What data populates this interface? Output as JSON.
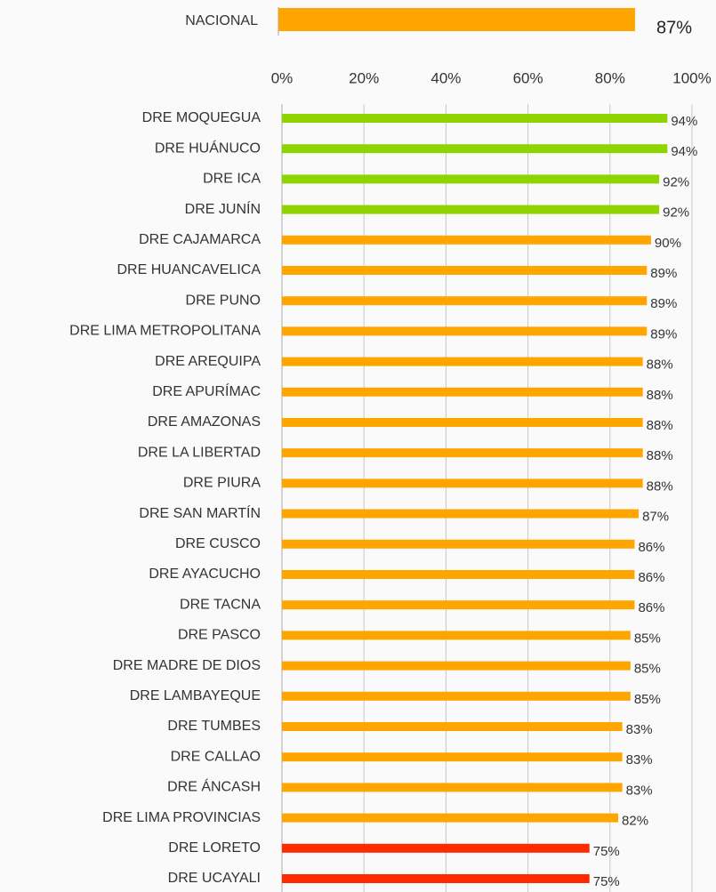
{
  "chart_data": [
    {
      "type": "bar",
      "categories": [
        "NACIONAL"
      ],
      "values": [
        87
      ],
      "value_labels": [
        "87%"
      ],
      "color": "#ffa500"
    },
    {
      "type": "bar",
      "categories": [
        "DRE MOQUEGUA",
        "DRE HUÁNUCO",
        "DRE ICA",
        "DRE JUNÍN",
        "DRE CAJAMARCA",
        "DRE HUANCAVELICA",
        "DRE PUNO",
        "DRE LIMA METROPOLITANA",
        "DRE AREQUIPA",
        "DRE APURÍMAC",
        "DRE AMAZONAS",
        "DRE LA LIBERTAD",
        "DRE PIURA",
        "DRE SAN MARTÍN",
        "DRE CUSCO",
        "DRE AYACUCHO",
        "DRE TACNA",
        "DRE PASCO",
        "DRE MADRE DE DIOS",
        "DRE LAMBAYEQUE",
        "DRE TUMBES",
        "DRE CALLAO",
        "DRE ÁNCASH",
        "DRE LIMA PROVINCIAS",
        "DRE LORETO",
        "DRE UCAYALI"
      ],
      "values": [
        94,
        94,
        92,
        92,
        90,
        89,
        89,
        89,
        88,
        88,
        88,
        88,
        88,
        87,
        86,
        86,
        86,
        85,
        85,
        85,
        83,
        83,
        83,
        82,
        75,
        75
      ],
      "value_labels": [
        "94%",
        "94%",
        "92%",
        "92%",
        "90%",
        "89%",
        "89%",
        "89%",
        "88%",
        "88%",
        "88%",
        "88%",
        "88%",
        "87%",
        "86%",
        "86%",
        "86%",
        "85%",
        "85%",
        "85%",
        "83%",
        "83%",
        "83%",
        "82%",
        "75%",
        "75%"
      ],
      "colors": [
        "#8fd400",
        "#8fd400",
        "#8fd400",
        "#8fd400",
        "#ffa500",
        "#ffa500",
        "#ffa500",
        "#ffa500",
        "#ffa500",
        "#ffa500",
        "#ffa500",
        "#ffa500",
        "#ffa500",
        "#ffa500",
        "#ffa500",
        "#ffa500",
        "#ffa500",
        "#ffa500",
        "#ffa500",
        "#ffa500",
        "#ffa500",
        "#ffa500",
        "#ffa500",
        "#ffa500",
        "#ff2a00",
        "#ff2a00"
      ],
      "xlim": [
        0,
        100
      ],
      "xticks": [
        {
          "value": 0,
          "label": "0%"
        },
        {
          "value": 20,
          "label": "20%"
        },
        {
          "value": 40,
          "label": "40%"
        },
        {
          "value": 60,
          "label": "60%"
        },
        {
          "value": 80,
          "label": "80%"
        },
        {
          "value": 100,
          "label": "100%"
        }
      ],
      "grid": true
    }
  ]
}
